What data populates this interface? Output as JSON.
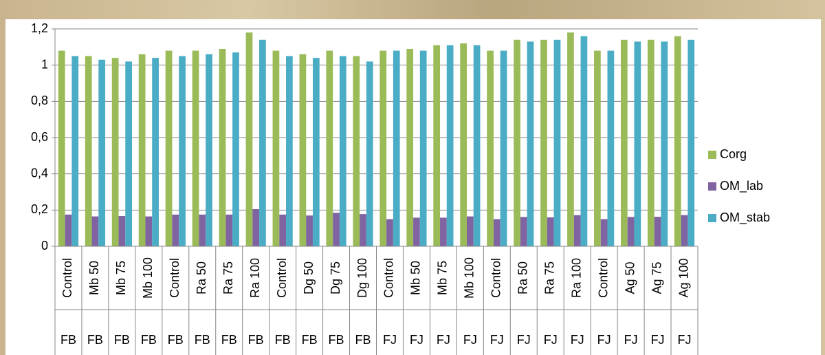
{
  "chart_data": {
    "type": "bar",
    "categories": [
      "Control",
      "Mb 50",
      "Mb 75",
      "Mb 100",
      "Control",
      "Ra 50",
      "Ra 75",
      "Ra 100",
      "Control",
      "Dg 50",
      "Dg 75",
      "Dg 100",
      "Control",
      "Mb 50",
      "Mb 75",
      "Mb 100",
      "Control",
      "Ra 50",
      "Ra 75",
      "Ra 100",
      "Control",
      "Ag 50",
      "Ag 75",
      "Ag 100"
    ],
    "category_groups": [
      "FB",
      "FB",
      "FB",
      "FB",
      "FB",
      "FB",
      "FB",
      "FB",
      "FB",
      "FB",
      "FB",
      "FB",
      "FJ",
      "FJ",
      "FJ",
      "FJ",
      "FJ",
      "FJ",
      "FJ",
      "FJ",
      "FJ",
      "FJ",
      "FJ",
      "FJ"
    ],
    "series": [
      {
        "name": "Corg",
        "color": "#9bbb59",
        "values": [
          1.08,
          1.05,
          1.04,
          1.06,
          1.08,
          1.08,
          1.09,
          1.18,
          1.08,
          1.06,
          1.08,
          1.05,
          1.08,
          1.09,
          1.11,
          1.12,
          1.08,
          1.14,
          1.14,
          1.18,
          1.08,
          1.14,
          1.14,
          1.16
        ]
      },
      {
        "name": "OM_lab",
        "color": "#8064a2",
        "values": [
          0.175,
          0.165,
          0.167,
          0.165,
          0.175,
          0.175,
          0.175,
          0.205,
          0.175,
          0.17,
          0.185,
          0.178,
          0.15,
          0.158,
          0.158,
          0.165,
          0.15,
          0.162,
          0.16,
          0.172,
          0.15,
          0.162,
          0.163,
          0.172
        ]
      },
      {
        "name": "OM_stab",
        "color": "#4bacc6",
        "values": [
          1.05,
          1.03,
          1.02,
          1.04,
          1.05,
          1.06,
          1.07,
          1.14,
          1.05,
          1.04,
          1.05,
          1.02,
          1.08,
          1.08,
          1.11,
          1.11,
          1.08,
          1.13,
          1.14,
          1.16,
          1.08,
          1.13,
          1.13,
          1.14
        ]
      }
    ],
    "ylim": [
      0,
      1.2
    ],
    "yticks": [
      0,
      {
        "value": 0.2,
        "label": "0,2"
      },
      {
        "value": 0.4,
        "label": "0,4"
      },
      {
        "value": 0.6,
        "label": "0,6"
      },
      {
        "value": 0.8,
        "label": "0,8"
      },
      1,
      {
        "value": 1.2,
        "label": "1,2"
      }
    ],
    "grid": true,
    "legend": "right"
  }
}
